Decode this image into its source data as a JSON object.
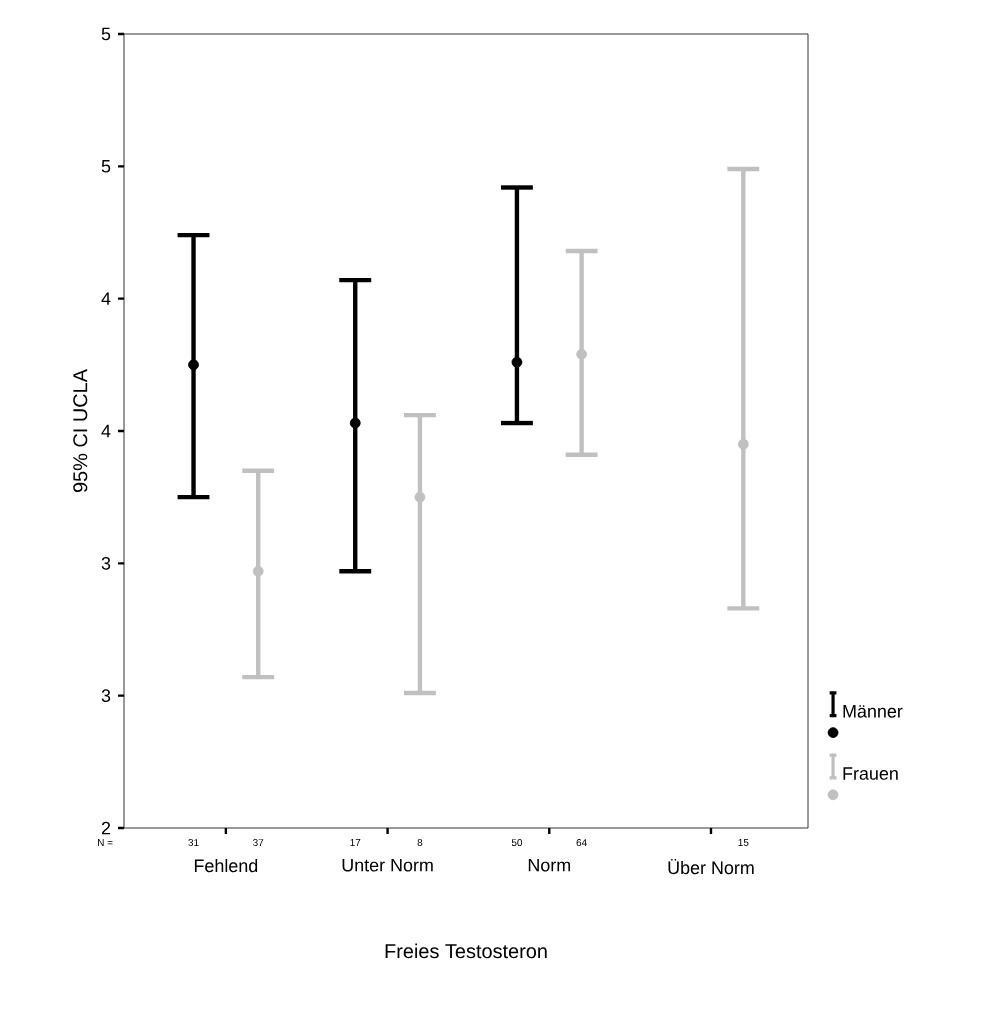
{
  "chart_data": {
    "type": "scatter",
    "xlabel": "Freies Testosteron",
    "ylabel": "95% CI UCLA",
    "categories": [
      "Fehlend",
      "Unter Norm",
      "Norm",
      "Über Norm"
    ],
    "ylim": [
      2,
      5
    ],
    "yticks": [
      {
        "value": 2,
        "label": "2"
      },
      {
        "value": 2.5,
        "label": "3"
      },
      {
        "value": 3,
        "label": "3"
      },
      {
        "value": 3.5,
        "label": "4"
      },
      {
        "value": 4,
        "label": "4"
      },
      {
        "value": 4.5,
        "label": "5"
      },
      {
        "value": 5,
        "label": "5"
      }
    ],
    "marker": "circle",
    "legend": "right",
    "grid": false,
    "series": [
      {
        "name": "Männer",
        "color": "#000000",
        "values": [
          3.75,
          3.53,
          3.76,
          null
        ],
        "errors": [
          [
            3.25,
            4.24
          ],
          [
            2.97,
            4.07
          ],
          [
            3.53,
            4.42
          ],
          null
        ]
      },
      {
        "name": "Frauen",
        "color": "#c0c0c0",
        "values": [
          2.97,
          3.25,
          3.79,
          3.45
        ],
        "errors": [
          [
            2.57,
            3.35
          ],
          [
            2.51,
            3.56
          ],
          [
            3.41,
            4.18
          ],
          [
            2.83,
            4.49
          ]
        ]
      }
    ],
    "annotations": [
      "N =",
      "31",
      "37",
      "17",
      "8",
      "50",
      "64",
      "15"
    ]
  }
}
